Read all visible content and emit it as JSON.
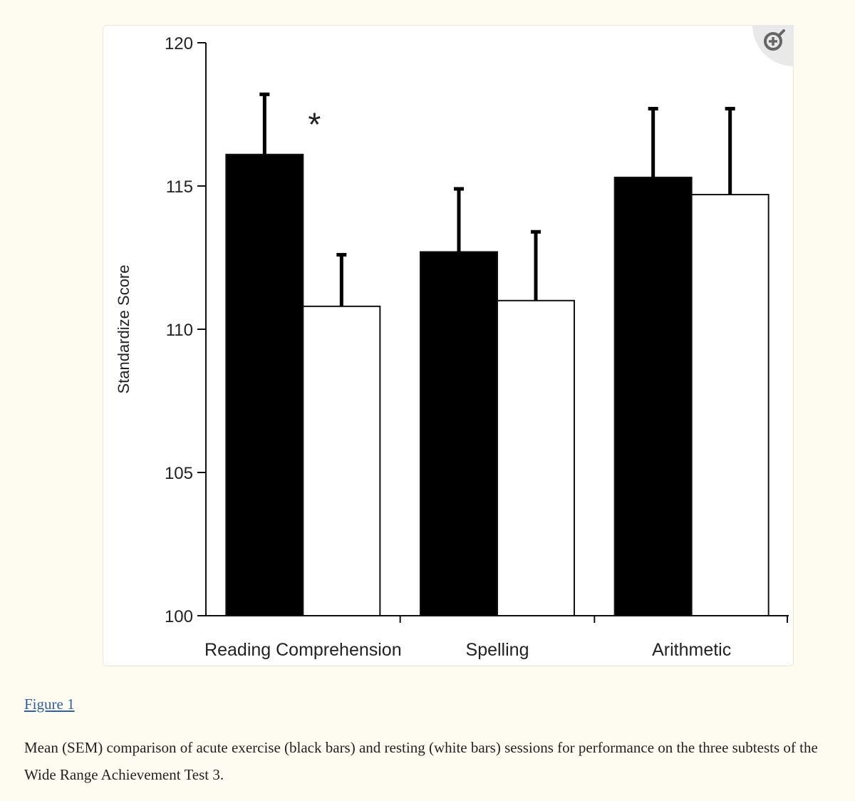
{
  "chart_data": {
    "type": "bar",
    "title": "",
    "xlabel": "",
    "ylabel": "Standardize Score",
    "ylim": [
      100,
      120
    ],
    "yticks": [
      100,
      105,
      110,
      115,
      120
    ],
    "categories": [
      "Reading Comprehension",
      "Spelling",
      "Arithmetic"
    ],
    "series": [
      {
        "values": [
          116.1,
          112.7,
          115.3
        ],
        "errors": [
          2.1,
          2.2,
          2.4
        ],
        "color": "#000000"
      },
      {
        "values": [
          110.8,
          111.0,
          114.7
        ],
        "errors": [
          1.8,
          2.4,
          3.0
        ],
        "color": "#ffffff"
      }
    ],
    "annotations": [
      {
        "text": "*",
        "category": "Reading Comprehension"
      }
    ],
    "grid": false,
    "legend": "none"
  },
  "figure": {
    "link_label": "Figure 1",
    "caption": "Mean (SEM) comparison of acute exercise (black bars) and resting (white bars) sessions for performance on the three subtests of the Wide Range Achievement Test 3.",
    "zoom_icon": "zoom-in-icon"
  }
}
